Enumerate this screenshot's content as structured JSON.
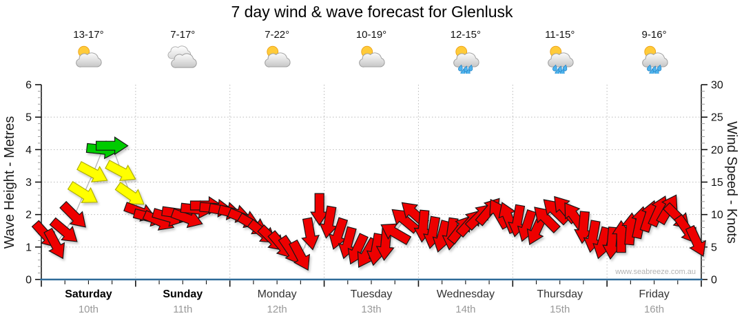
{
  "title": "7 day wind & wave forecast for Glenlusk",
  "watermark": "www.seabreeze.com.au",
  "axes": {
    "left_label": "Wave Height - Metres",
    "right_label": "Wind Speed - Knots",
    "left_ticks": [
      0,
      1,
      2,
      3,
      4,
      5,
      6
    ],
    "right_ticks": [
      0,
      5,
      10,
      15,
      20,
      25,
      30
    ],
    "left_range_metres": [
      0,
      6
    ],
    "right_range_knots": [
      0,
      30
    ]
  },
  "days": [
    {
      "name": "Saturday",
      "date": "10th",
      "temp": "13-17°",
      "icon": "sun-cloud-icon",
      "weekend": true
    },
    {
      "name": "Sunday",
      "date": "11th",
      "temp": "7-17°",
      "icon": "clouds-icon",
      "weekend": true
    },
    {
      "name": "Monday",
      "date": "12th",
      "temp": "7-22°",
      "icon": "sun-cloud-icon",
      "weekend": false
    },
    {
      "name": "Tuesday",
      "date": "13th",
      "temp": "10-19°",
      "icon": "sun-cloud-icon",
      "weekend": false
    },
    {
      "name": "Wednesday",
      "date": "14th",
      "temp": "12-15°",
      "icon": "sun-cloud-rain-icon",
      "weekend": false
    },
    {
      "name": "Thursday",
      "date": "15th",
      "temp": "11-15°",
      "icon": "sun-cloud-rain-icon",
      "weekend": false
    },
    {
      "name": "Friday",
      "date": "16th",
      "temp": "9-16°",
      "icon": "sun-cloud-rain-icon",
      "weekend": false
    }
  ],
  "chart_data": {
    "type": "line",
    "subtype": "wind-direction-arrows",
    "title": "7 day wind & wave forecast for Glenlusk",
    "ylabel_left": "Wave Height - Metres",
    "ylabel_right": "Wind Speed - Knots",
    "ylim_left_metres": [
      0,
      6
    ],
    "ylim_right_knots": [
      0,
      30
    ],
    "grid": true,
    "points_per_day": 10,
    "categories": [
      "Saturday 10th",
      "Sunday 11th",
      "Monday 12th",
      "Tuesday 13th",
      "Wednesday 14th",
      "Thursday 15th",
      "Friday 16th"
    ],
    "wind_speed_knots": [
      6.8,
      5.4,
      7.4,
      9.8,
      13.2,
      16.4,
      20.0,
      20.6,
      16.6,
      13.0,
      10.4,
      9.6,
      9.0,
      9.6,
      10.2,
      9.4,
      10.8,
      11.4,
      11.0,
      10.6,
      10.2,
      9.4,
      8.4,
      7.2,
      6.2,
      5.2,
      4.4,
      3.6,
      7.0,
      10.8,
      8.8,
      7.0,
      5.6,
      4.6,
      4.0,
      4.6,
      5.4,
      7.2,
      9.2,
      10.2,
      8.2,
      7.2,
      6.6,
      7.0,
      7.8,
      8.8,
      9.8,
      10.6,
      10.2,
      9.6,
      9.0,
      8.2,
      7.6,
      9.4,
      10.6,
      10.9,
      9.8,
      8.0,
      6.6,
      5.6,
      5.6,
      6.6,
      7.8,
      8.8,
      9.8,
      10.6,
      10.9,
      9.6,
      7.6,
      5.8
    ],
    "arrow_direction_deg_screen": [
      48,
      62,
      40,
      45,
      32,
      28,
      6,
      0,
      28,
      35,
      20,
      14,
      24,
      16,
      8,
      20,
      6,
      0,
      4,
      10,
      14,
      22,
      30,
      38,
      44,
      50,
      56,
      62,
      80,
      90,
      100,
      108,
      105,
      115,
      120,
      100,
      95,
      -150,
      -140,
      -138,
      95,
      100,
      105,
      98,
      -52,
      -48,
      -45,
      -50,
      -120,
      -112,
      100,
      108,
      115,
      -135,
      -136,
      -130,
      -125,
      95,
      100,
      105,
      95,
      -90,
      -85,
      -78,
      -72,
      -66,
      -60,
      45,
      55,
      65
    ],
    "color_bands": [
      {
        "label": "light",
        "max_knots": 12,
        "color": "#EE0000"
      },
      {
        "label": "moderate",
        "max_knots": 18.5,
        "color": "#FFFF00"
      },
      {
        "label": "fresh",
        "max_knots": 30,
        "color": "#00CC00"
      }
    ]
  },
  "colors": {
    "axis_bottom": "#2E6B99",
    "axis_side": "#1a1a1a",
    "gridline": "#b8b8b8",
    "connector": "#b3b3b3",
    "arrow_light": "#EE0000",
    "arrow_moderate": "#FFFF00",
    "arrow_fresh": "#00CC00"
  }
}
